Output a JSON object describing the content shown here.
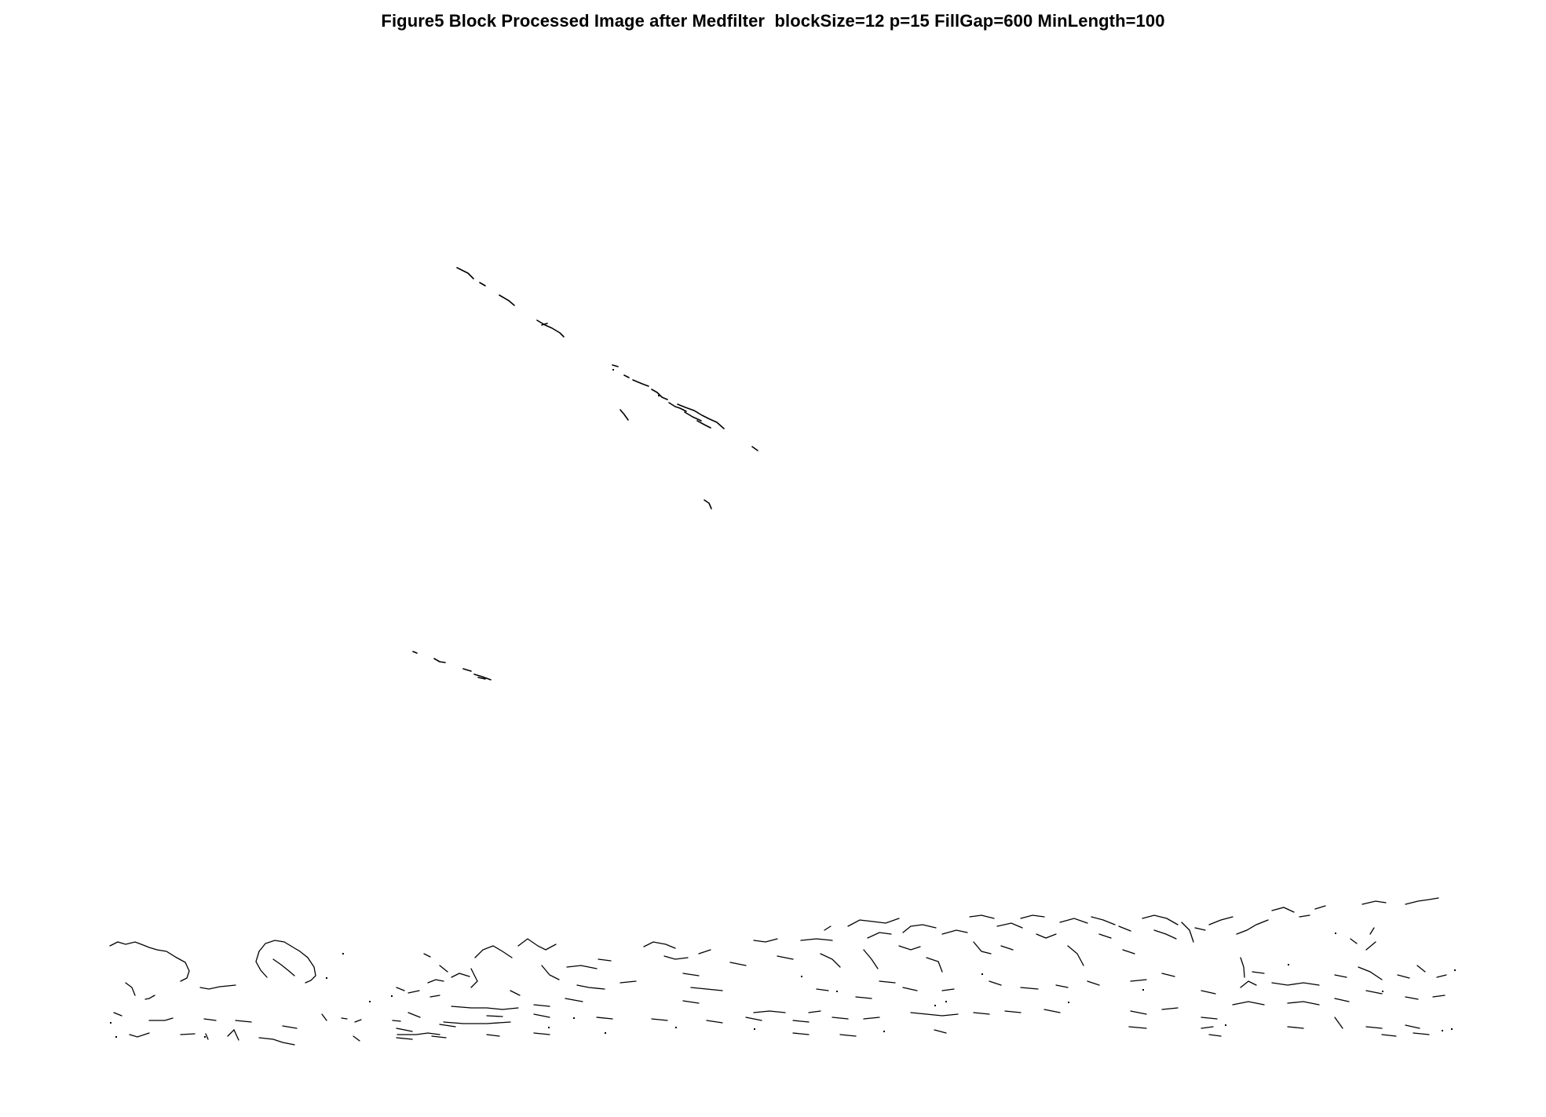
{
  "figure": {
    "title": "Figure5 Block Processed Image after Medfilter  blockSize=12 p=15 FillGap=600 MinLength=100",
    "background_color": "#ffffff",
    "foreground_color": "#000000"
  }
}
